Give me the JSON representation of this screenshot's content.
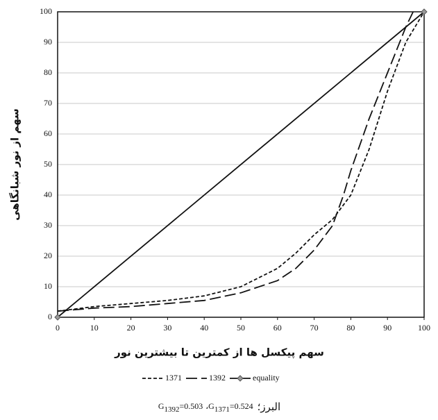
{
  "chart_data": {
    "type": "line",
    "xlabel": "سهم پیکسل ها از کمترین تا بیشترین نور",
    "ylabel": "سهم از نور شبانگاهی",
    "xlim": [
      0,
      100
    ],
    "ylim": [
      0,
      100
    ],
    "xticks": [
      0,
      10,
      20,
      30,
      40,
      50,
      60,
      70,
      80,
      90,
      100
    ],
    "yticks": [
      0,
      10,
      20,
      30,
      40,
      50,
      60,
      70,
      80,
      90,
      100
    ],
    "grid": true,
    "series": [
      {
        "name": "1371",
        "color": "#111111",
        "style": "short-dash",
        "x": [
          0,
          10,
          20,
          30,
          40,
          50,
          60,
          65,
          70,
          75,
          80,
          85,
          90,
          95,
          100
        ],
        "values": [
          2,
          3.5,
          4.5,
          5.5,
          7,
          10,
          16,
          21,
          27,
          32,
          40,
          55,
          74,
          90,
          100
        ]
      },
      {
        "name": "1392",
        "color": "#111111",
        "style": "long-dash",
        "x": [
          0,
          10,
          20,
          30,
          40,
          50,
          60,
          65,
          70,
          75,
          78,
          80,
          85,
          90,
          95,
          97
        ],
        "values": [
          2,
          3,
          3.5,
          4.5,
          5.5,
          8,
          12,
          16,
          22,
          30,
          40,
          48,
          65,
          80,
          95,
          100
        ]
      },
      {
        "name": "equality",
        "color": "#111111",
        "style": "solid",
        "marker": "diamond",
        "x": [
          0,
          100
        ],
        "values": [
          0,
          100
        ]
      }
    ],
    "caption": {
      "region": "البرز؛",
      "separator": "،",
      "items": [
        {
          "symbol": "G",
          "year": "1392",
          "value": "=0.503"
        },
        {
          "symbol": "G",
          "year": "1371",
          "value": "=0.524"
        }
      ]
    }
  }
}
